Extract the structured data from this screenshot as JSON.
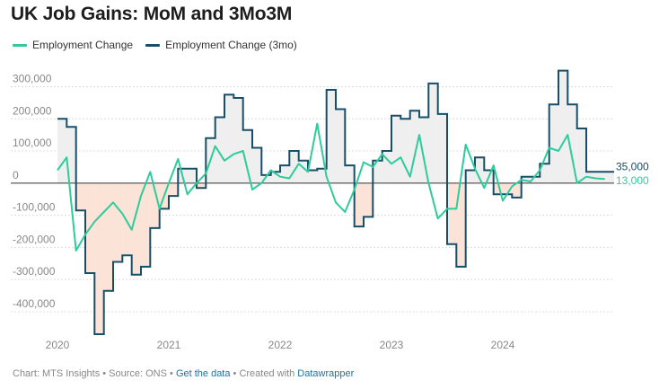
{
  "title": "UK Job Gains: MoM and 3Mo3M",
  "legend": [
    {
      "label": "Employment Change",
      "color": "#2ecc9a"
    },
    {
      "label": "Employment Change (3mo)",
      "color": "#174f68"
    }
  ],
  "footer": {
    "prefix": "Chart: MTS Insights • Source: ONS •",
    "get_data": "Get the data",
    "mid": "• Created with",
    "tool": "Datawrapper"
  },
  "chart_data": {
    "type": "line",
    "title": "UK Job Gains: MoM and 3Mo3M",
    "xlabel": "",
    "ylabel": "",
    "y_ticks": [
      300000,
      200000,
      100000,
      0,
      -100000,
      -200000,
      -300000,
      -400000
    ],
    "y_tick_labels": [
      "300,000",
      "200,000",
      "100,000",
      "0",
      "-100,000",
      "-200,000",
      "-300,000",
      "-400,000"
    ],
    "x_tick_labels": [
      "2020",
      "2021",
      "2022",
      "2023",
      "2024"
    ],
    "x_tick_years": [
      2020,
      2021,
      2022,
      2023,
      2024
    ],
    "ylim": [
      -470000,
      360000
    ],
    "xlim": [
      2020.0,
      2025.0
    ],
    "end_labels": [
      {
        "series": "Employment Change (3mo)",
        "text": "35,000",
        "value": 35000
      },
      {
        "series": "Employment Change",
        "text": "13,000",
        "value": 13000
      }
    ],
    "series": [
      {
        "name": "Employment Change",
        "color": "#2ecc9a",
        "style": "line",
        "x": [
          2020.0,
          2020.083,
          2020.167,
          2020.25,
          2020.333,
          2020.417,
          2020.5,
          2020.583,
          2020.667,
          2020.75,
          2020.833,
          2020.917,
          2021.0,
          2021.083,
          2021.167,
          2021.25,
          2021.333,
          2021.417,
          2021.5,
          2021.583,
          2021.667,
          2021.75,
          2021.833,
          2021.917,
          2022.0,
          2022.083,
          2022.167,
          2022.25,
          2022.333,
          2022.417,
          2022.5,
          2022.583,
          2022.667,
          2022.75,
          2022.833,
          2022.917,
          2023.0,
          2023.083,
          2023.167,
          2023.25,
          2023.333,
          2023.417,
          2023.5,
          2023.583,
          2023.667,
          2023.75,
          2023.833,
          2023.917,
          2024.0,
          2024.083,
          2024.167,
          2024.25,
          2024.333,
          2024.417,
          2024.5,
          2024.583,
          2024.667,
          2024.75,
          2024.833,
          2024.917
        ],
        "values": [
          40000,
          80000,
          -210000,
          -160000,
          -120000,
          -90000,
          -60000,
          -95000,
          -145000,
          -40000,
          35000,
          -80000,
          0,
          75000,
          -35000,
          0,
          30000,
          115000,
          70000,
          90000,
          100000,
          -20000,
          0,
          40000,
          20000,
          15000,
          60000,
          35000,
          185000,
          20000,
          -60000,
          -90000,
          -20000,
          65000,
          50000,
          90000,
          60000,
          80000,
          20000,
          150000,
          0,
          -110000,
          -80000,
          -80000,
          120000,
          45000,
          -15000,
          55000,
          -55000,
          -10000,
          10000,
          5000,
          40000,
          110000,
          100000,
          150000,
          0,
          20000,
          15000,
          13000
        ]
      },
      {
        "name": "Employment Change (3mo)",
        "color": "#174f68",
        "style": "step",
        "x": [
          2020.0,
          2020.083,
          2020.167,
          2020.25,
          2020.333,
          2020.417,
          2020.5,
          2020.583,
          2020.667,
          2020.75,
          2020.833,
          2020.917,
          2021.0,
          2021.083,
          2021.167,
          2021.25,
          2021.333,
          2021.417,
          2021.5,
          2021.583,
          2021.667,
          2021.75,
          2021.833,
          2021.917,
          2022.0,
          2022.083,
          2022.167,
          2022.25,
          2022.333,
          2022.417,
          2022.5,
          2022.583,
          2022.667,
          2022.75,
          2022.833,
          2022.917,
          2023.0,
          2023.083,
          2023.167,
          2023.25,
          2023.333,
          2023.417,
          2023.5,
          2023.583,
          2023.667,
          2023.75,
          2023.833,
          2023.917,
          2024.0,
          2024.083,
          2024.167,
          2024.25,
          2024.333,
          2024.417,
          2024.5,
          2024.583,
          2024.667,
          2024.75,
          2024.833,
          2024.917
        ],
        "values": [
          200000,
          175000,
          -85000,
          -280000,
          -470000,
          -335000,
          -245000,
          -225000,
          -285000,
          -260000,
          -140000,
          -80000,
          -40000,
          45000,
          45000,
          -15000,
          140000,
          205000,
          275000,
          265000,
          165000,
          110000,
          25000,
          35000,
          55000,
          100000,
          70000,
          40000,
          45000,
          290000,
          230000,
          55000,
          -135000,
          -105000,
          70000,
          100000,
          210000,
          200000,
          225000,
          205000,
          310000,
          215000,
          -190000,
          -260000,
          40000,
          80000,
          40000,
          -35000,
          -35000,
          -45000,
          20000,
          20000,
          60000,
          245000,
          350000,
          245000,
          170000,
          35000,
          35000,
          35000
        ]
      }
    ]
  }
}
